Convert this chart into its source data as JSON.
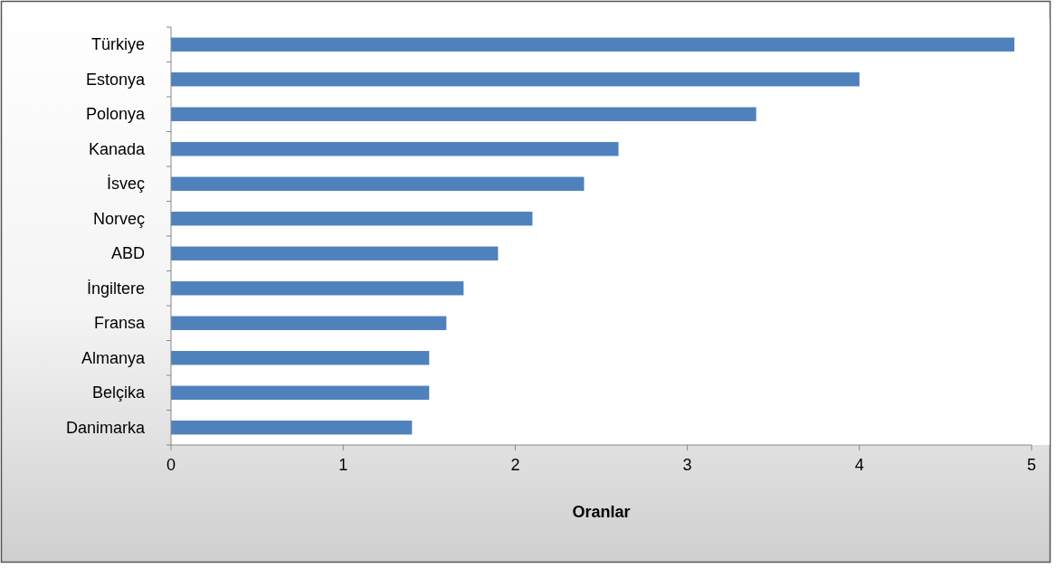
{
  "chart_data": {
    "type": "bar",
    "orientation": "horizontal",
    "xlabel": "Oranlar",
    "categories": [
      "Türkiye",
      "Estonya",
      "Polonya",
      "Kanada",
      "İsveç",
      "Norveç",
      "ABD",
      "İngiltere",
      "Fransa",
      "Almanya",
      "Belçika",
      "Danimarka"
    ],
    "values": [
      4.9,
      4.0,
      3.4,
      2.6,
      2.4,
      2.1,
      1.9,
      1.7,
      1.6,
      1.5,
      1.5,
      1.4
    ],
    "color": "#4f81bd",
    "xlim": [
      0,
      5
    ],
    "xticks": [
      0,
      1,
      2,
      3,
      4,
      5
    ],
    "grid": false
  }
}
